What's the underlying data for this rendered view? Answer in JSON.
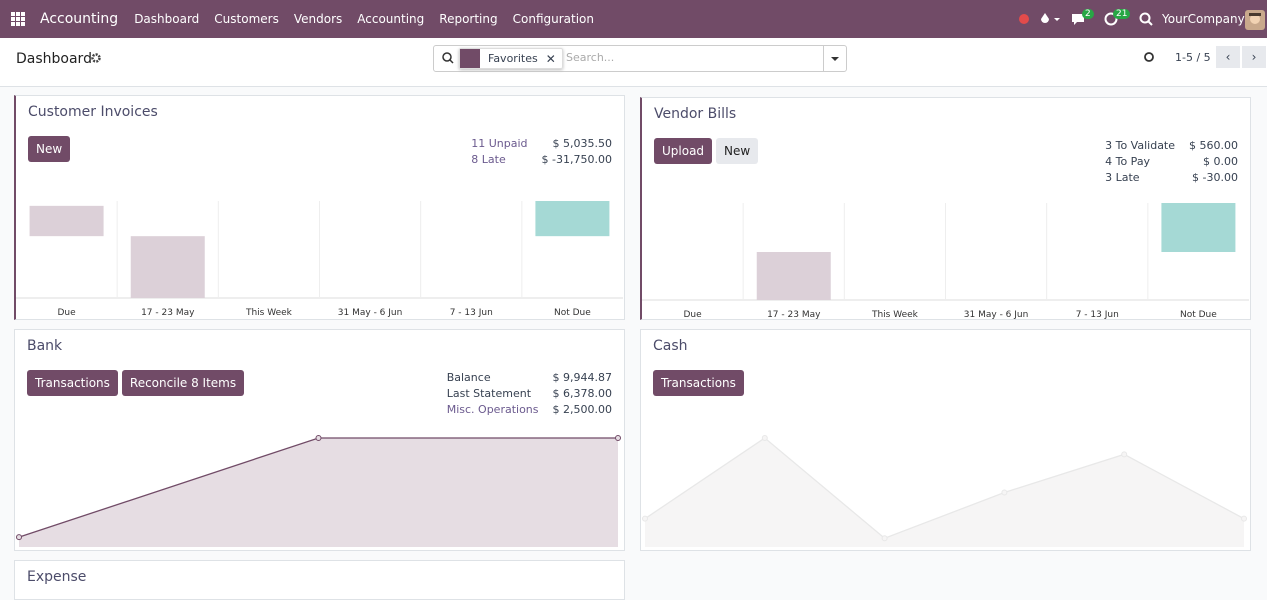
{
  "navbar": {
    "app": "Accounting",
    "menus": [
      "Dashboard",
      "Customers",
      "Vendors",
      "Accounting",
      "Reporting",
      "Configuration"
    ],
    "messages_badge": "2",
    "activities_badge": "21",
    "company": "YourCompany"
  },
  "control_panel": {
    "title": "Dashboard",
    "facet": "Favorites",
    "search_placeholder": "Search...",
    "pager": "1-5 / 5"
  },
  "journals": [
    {
      "title": "Customer Invoices",
      "buttons": [
        {
          "label": "New",
          "primary": true
        }
      ],
      "stats": [
        {
          "label": "11 Unpaid",
          "value": "$ 5,035.50",
          "link": true
        },
        {
          "label": "8 Late",
          "value": "$ -31,750.00",
          "link": true
        }
      ],
      "graph": {
        "type": "bar",
        "categories": [
          "Due",
          "17 - 23 May",
          "This Week",
          "31 May - 6 Jun",
          "7 - 13 Jun",
          "Not Due"
        ],
        "values": [
          5000,
          -10200,
          0,
          0,
          0,
          5800
        ],
        "colors": [
          "#dcd0d8",
          "#dcd0d8",
          "#dcd0d8",
          "#dcd0d8",
          "#dcd0d8",
          "#a5d9d5"
        ]
      }
    },
    {
      "title": "Vendor Bills",
      "buttons": [
        {
          "label": "Upload",
          "primary": true
        },
        {
          "label": "New",
          "primary": false
        }
      ],
      "stats": [
        {
          "label": "3 To Validate",
          "value": "$ 560.00",
          "link": false
        },
        {
          "label": "4 To Pay",
          "value": "$ 0.00",
          "link": false
        },
        {
          "label": "3 Late",
          "value": "$ -30.00",
          "link": false
        }
      ],
      "graph": {
        "type": "bar",
        "categories": [
          "Due",
          "17 - 23 May",
          "This Week",
          "31 May - 6 Jun",
          "7 - 13 Jun",
          "Not Due"
        ],
        "values": [
          0,
          -480,
          0,
          0,
          0,
          490
        ],
        "colors": [
          "#dcd0d8",
          "#dcd0d8",
          "#dcd0d8",
          "#dcd0d8",
          "#dcd0d8",
          "#a5d9d5"
        ]
      }
    },
    {
      "title": "Bank",
      "buttons": [
        {
          "label": "Transactions",
          "primary": true
        },
        {
          "label": "Reconcile 8 Items",
          "primary": true
        }
      ],
      "stats": [
        {
          "label": "Balance",
          "value": "$ 9,944.87",
          "link": false
        },
        {
          "label": "Last Statement",
          "value": "$ 6,378.00",
          "link": false
        },
        {
          "label": "Misc. Operations",
          "value": "$ 2,500.00",
          "link": true
        }
      ],
      "graph": {
        "type": "line",
        "values": [
          900,
          9944.87,
          9944.87
        ],
        "color": "#714b67",
        "fill": "#e6dde3"
      }
    },
    {
      "title": "Cash",
      "buttons": [
        {
          "label": "Transactions",
          "primary": true
        }
      ],
      "stats": [],
      "graph": {
        "type": "line",
        "values": [
          26,
          100,
          8,
          50,
          85,
          26
        ],
        "color": "#e8e8e8",
        "fill": "#f6f5f5"
      }
    },
    {
      "title": "Expense",
      "buttons": [],
      "stats": []
    }
  ]
}
